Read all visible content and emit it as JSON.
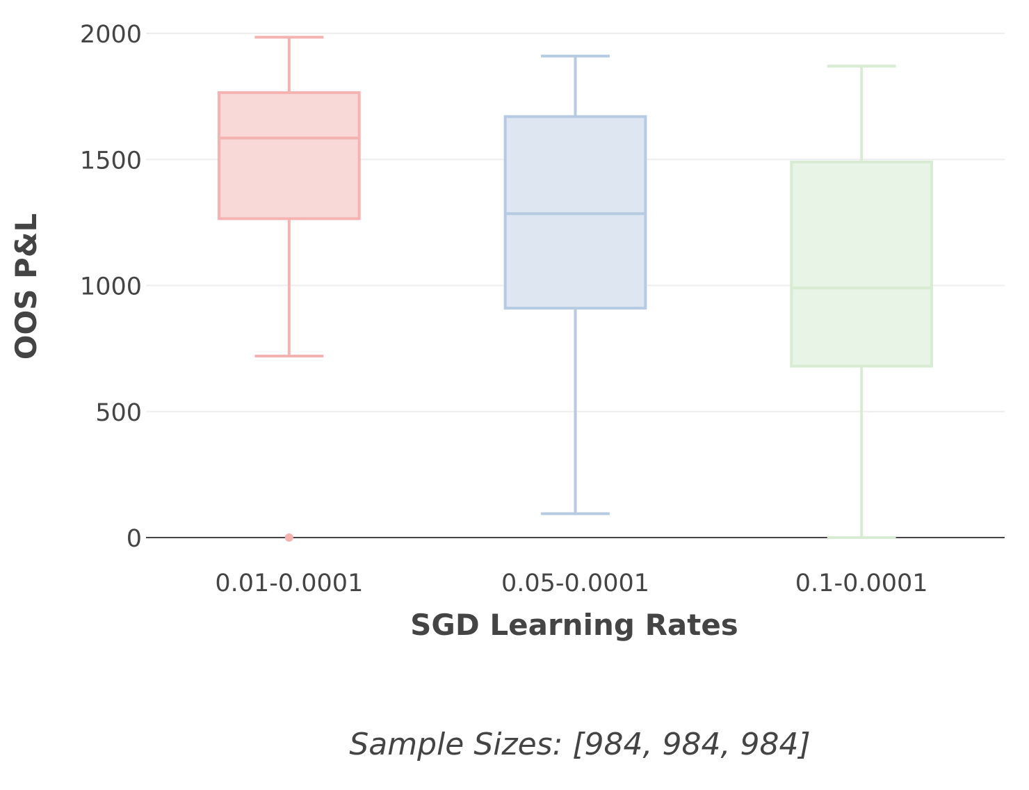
{
  "chart_data": {
    "type": "box",
    "title": "",
    "xlabel": "SGD Learning Rates",
    "ylabel": "OOS P&L",
    "ylim": [
      0,
      2000
    ],
    "yticks": [
      0,
      500,
      1000,
      1500,
      2000
    ],
    "grid": "horizontal",
    "categories": [
      "0.01-0.0001",
      "0.05-0.0001",
      "0.1-0.0001"
    ],
    "series": [
      {
        "category": "0.01-0.0001",
        "lower_whisker": 720,
        "q1": 1265,
        "median": 1585,
        "q3": 1765,
        "upper_whisker": 1985,
        "outliers": [
          0
        ],
        "stroke": "#f4b3b1",
        "fill": "#f9d9d8"
      },
      {
        "category": "0.05-0.0001",
        "lower_whisker": 95,
        "q1": 910,
        "median": 1285,
        "q3": 1670,
        "upper_whisker": 1910,
        "outliers": [],
        "stroke": "#b6cbe2",
        "fill": "#dde6f1"
      },
      {
        "category": "0.1-0.0001",
        "lower_whisker": 0,
        "q1": 680,
        "median": 990,
        "q3": 1490,
        "upper_whisker": 1870,
        "outliers": [],
        "stroke": "#d7ecd2",
        "fill": "#e8f4e5"
      }
    ],
    "annotation": "Sample Sizes: [984, 984, 984]"
  }
}
